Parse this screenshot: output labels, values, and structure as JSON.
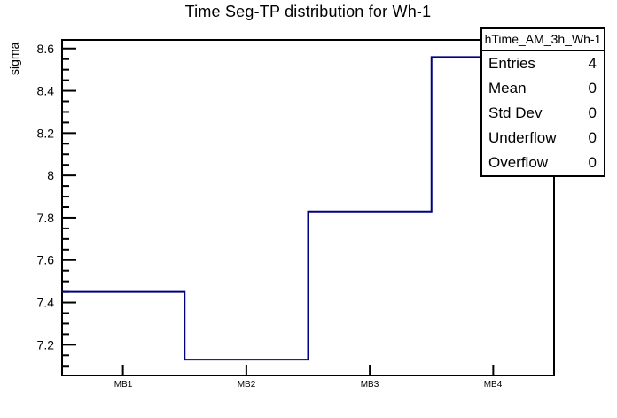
{
  "page": {
    "background_color": "#ffffff",
    "text_color": "#000000"
  },
  "chart_data": {
    "type": "step-histogram",
    "title": "Time Seg-TP distribution for Wh-1",
    "xlabel": "",
    "ylabel": "sigma",
    "categories": [
      "MB1",
      "MB2",
      "MB3",
      "MB4"
    ],
    "values": [
      7.45,
      7.13,
      7.83,
      8.56
    ],
    "ylim": [
      7.055,
      8.645
    ],
    "yticks_major": [
      7.2,
      7.4,
      7.6,
      7.8,
      8.0,
      8.2,
      8.4,
      8.6
    ],
    "ytick_minor_step": 0.05,
    "grid": false,
    "line_color": "#000080",
    "frame_color": "#000000",
    "legend_position": "top-right"
  },
  "stats_box": {
    "title": "hTime_AM_3h_Wh-1",
    "rows": [
      {
        "label": "Entries",
        "value": "4"
      },
      {
        "label": "Mean",
        "value": "0"
      },
      {
        "label": "Std Dev",
        "value": "0"
      },
      {
        "label": "Underflow",
        "value": "0"
      },
      {
        "label": "Overflow",
        "value": "0"
      }
    ]
  }
}
